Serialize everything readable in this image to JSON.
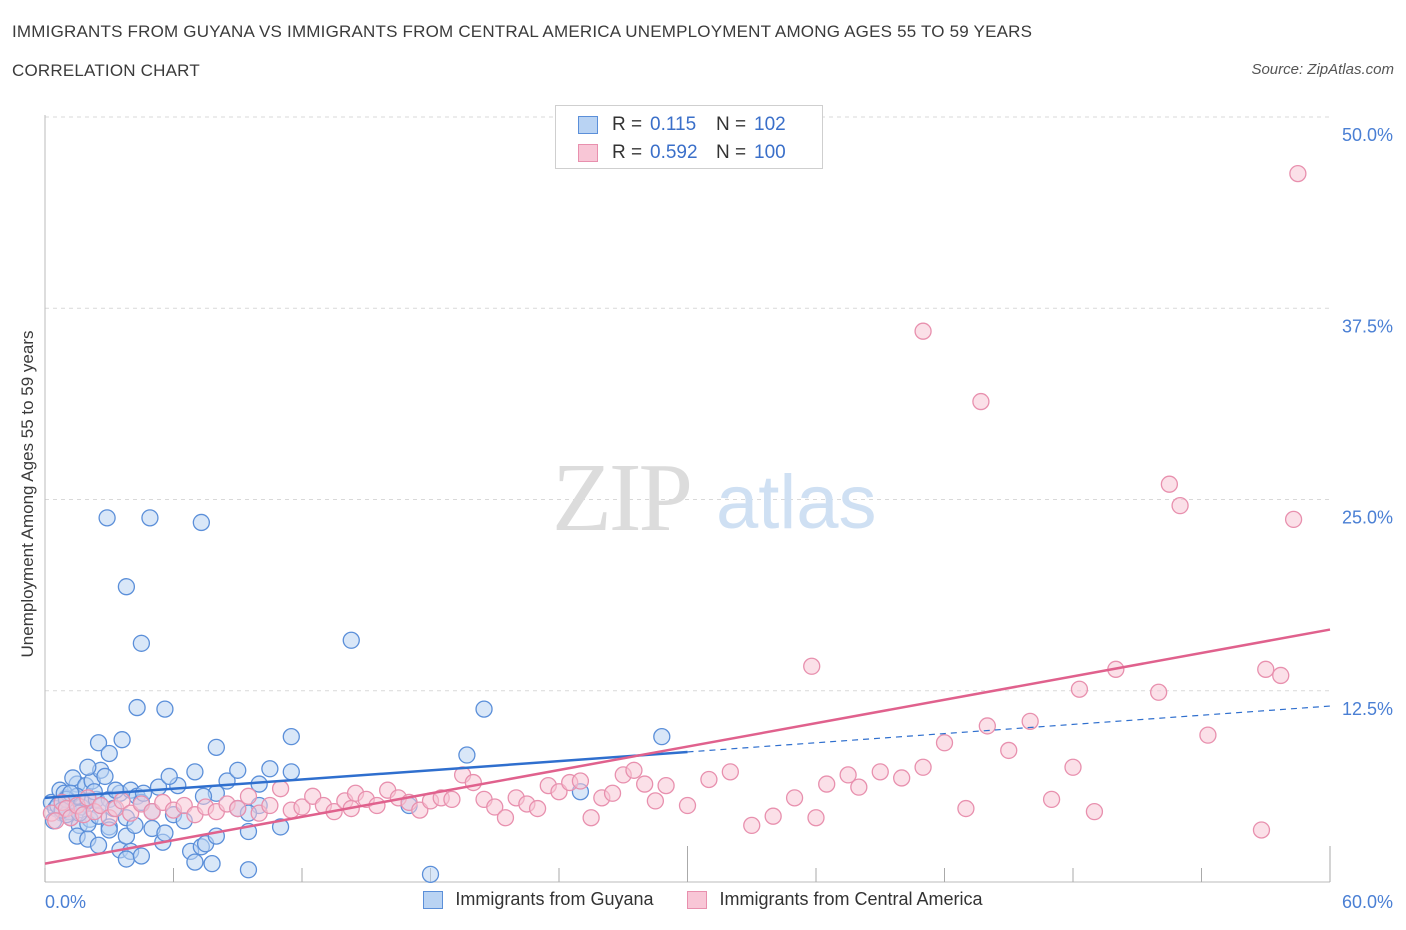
{
  "header": {
    "title": "IMMIGRANTS FROM GUYANA VS IMMIGRANTS FROM CENTRAL AMERICA UNEMPLOYMENT AMONG AGES 55 TO 59 YEARS",
    "subtitle": "CORRELATION CHART",
    "source": "Source: ZipAtlas.com"
  },
  "watermark": {
    "zip": "ZIP",
    "atlas": "atlas"
  },
  "legend": {
    "r_label": "R =",
    "n_label": "N =",
    "rows": [
      {
        "r": "0.115",
        "n": "102"
      },
      {
        "r": "0.592",
        "n": "100"
      }
    ]
  },
  "colors": {
    "guyana_fill": "#b9d3f3",
    "guyana_stroke": "#5b8fd9",
    "guyana_line": "#2f6fce",
    "central_fill": "#f8c6d6",
    "central_stroke": "#e890ae",
    "central_line": "#e0618d",
    "tick_text": "#4a7fd4",
    "grid": "#d9d9d9"
  },
  "chart_data": {
    "type": "scatter",
    "title": "IMMIGRANTS FROM GUYANA VS IMMIGRANTS FROM CENTRAL AMERICA UNEMPLOYMENT AMONG AGES 55 TO 59 YEARS",
    "ylabel": "Unemployment Among Ages 55 to 59 years",
    "xlim": [
      0,
      60
    ],
    "ylim": [
      0,
      50
    ],
    "x_tick_labels": [
      "0.0%",
      "60.0%"
    ],
    "y_ticks": [
      12.5,
      25.0,
      37.5,
      50.0
    ],
    "y_tick_labels": [
      "12.5%",
      "25.0%",
      "37.5%",
      "50.0%"
    ],
    "grid": "horizontal dashed",
    "series": [
      {
        "name": "Immigrants from Guyana",
        "r": 0.115,
        "n": 102,
        "trend": {
          "x0": 0,
          "y0": 5.5,
          "x1": 60,
          "y1": 11.5,
          "solid_until": 30
        },
        "points": [
          [
            0.3,
            5.2
          ],
          [
            0.5,
            4.8
          ],
          [
            0.7,
            6.0
          ],
          [
            0.8,
            4.5
          ],
          [
            1.0,
            5.5
          ],
          [
            1.2,
            4.2
          ],
          [
            1.4,
            5.0
          ],
          [
            1.5,
            6.4
          ],
          [
            1.6,
            3.7
          ],
          [
            1.8,
            5.1
          ],
          [
            0.4,
            4.0
          ],
          [
            0.9,
            5.8
          ],
          [
            1.1,
            4.6
          ],
          [
            1.3,
            6.8
          ],
          [
            1.7,
            4.9
          ],
          [
            1.9,
            6.3
          ],
          [
            2.0,
            5.3
          ],
          [
            2.1,
            4.1
          ],
          [
            2.2,
            6.6
          ],
          [
            2.4,
            5.4
          ],
          [
            0.6,
            5.0
          ],
          [
            1.0,
            4.4
          ],
          [
            1.5,
            5.6
          ],
          [
            2.0,
            3.8
          ],
          [
            2.3,
            5.9
          ],
          [
            2.5,
            4.3
          ],
          [
            2.6,
            7.3
          ],
          [
            2.8,
            6.9
          ],
          [
            3.0,
            5.4
          ],
          [
            3.2,
            4.8
          ],
          [
            2.0,
            7.5
          ],
          [
            2.5,
            9.1
          ],
          [
            3.0,
            8.4
          ],
          [
            3.5,
            5.8
          ],
          [
            3.8,
            4.2
          ],
          [
            4.0,
            6.0
          ],
          [
            4.3,
            5.6
          ],
          [
            4.5,
            5.2
          ],
          [
            5.0,
            4.6
          ],
          [
            5.3,
            6.2
          ],
          [
            1.5,
            3.0
          ],
          [
            2.0,
            2.8
          ],
          [
            2.5,
            2.4
          ],
          [
            3.0,
            3.6
          ],
          [
            3.5,
            2.1
          ],
          [
            4.0,
            2.0
          ],
          [
            3.8,
            1.5
          ],
          [
            4.5,
            1.7
          ],
          [
            5.0,
            3.5
          ],
          [
            5.5,
            2.6
          ],
          [
            3.0,
            3.4
          ],
          [
            3.8,
            3.0
          ],
          [
            4.2,
            3.7
          ],
          [
            5.6,
            3.2
          ],
          [
            6.0,
            4.4
          ],
          [
            6.5,
            4.0
          ],
          [
            6.8,
            2.0
          ],
          [
            7.0,
            1.3
          ],
          [
            7.3,
            2.3
          ],
          [
            7.5,
            2.5
          ],
          [
            7.8,
            1.2
          ],
          [
            8.0,
            3.0
          ],
          [
            8.5,
            6.6
          ],
          [
            9.0,
            4.8
          ],
          [
            10.0,
            5.0
          ],
          [
            7.0,
            7.2
          ],
          [
            6.2,
            6.3
          ],
          [
            5.8,
            6.9
          ],
          [
            4.6,
            5.8
          ],
          [
            8.0,
            5.8
          ],
          [
            9.5,
            3.3
          ],
          [
            10.5,
            7.4
          ],
          [
            11.0,
            3.6
          ],
          [
            8.0,
            8.8
          ],
          [
            10.0,
            6.4
          ],
          [
            11.5,
            7.2
          ],
          [
            11.5,
            9.5
          ],
          [
            9.0,
            7.3
          ],
          [
            9.5,
            4.5
          ],
          [
            7.4,
            5.6
          ],
          [
            4.3,
            11.4
          ],
          [
            5.6,
            11.3
          ],
          [
            3.6,
            9.3
          ],
          [
            4.5,
            15.6
          ],
          [
            2.9,
            23.8
          ],
          [
            4.9,
            23.8
          ],
          [
            7.3,
            23.5
          ],
          [
            3.8,
            19.3
          ],
          [
            14.3,
            15.8
          ],
          [
            19.7,
            8.3
          ],
          [
            17.0,
            5.0
          ],
          [
            25.0,
            5.9
          ],
          [
            20.5,
            11.3
          ],
          [
            28.8,
            9.5
          ],
          [
            9.5,
            0.8
          ],
          [
            18.0,
            0.5
          ],
          [
            1.0,
            5.4
          ],
          [
            1.2,
            5.8
          ],
          [
            0.8,
            4.7
          ],
          [
            1.6,
            4.5
          ],
          [
            2.6,
            5.0
          ],
          [
            3.3,
            6.0
          ]
        ]
      },
      {
        "name": "Immigrants from Central America",
        "r": 0.592,
        "n": 100,
        "trend": {
          "x0": 0,
          "y0": 1.2,
          "x1": 60,
          "y1": 16.5
        },
        "points": [
          [
            0.3,
            4.5
          ],
          [
            0.5,
            4.0
          ],
          [
            0.8,
            5.2
          ],
          [
            1.0,
            4.8
          ],
          [
            1.2,
            4.2
          ],
          [
            1.5,
            5.0
          ],
          [
            1.8,
            4.4
          ],
          [
            2.0,
            5.5
          ],
          [
            2.3,
            4.6
          ],
          [
            2.6,
            5.0
          ],
          [
            3.0,
            4.2
          ],
          [
            3.3,
            4.8
          ],
          [
            3.6,
            5.3
          ],
          [
            4.0,
            4.5
          ],
          [
            4.5,
            5.1
          ],
          [
            5.0,
            4.6
          ],
          [
            5.5,
            5.2
          ],
          [
            6.0,
            4.7
          ],
          [
            6.5,
            5.0
          ],
          [
            7.0,
            4.4
          ],
          [
            7.5,
            4.9
          ],
          [
            8.0,
            4.6
          ],
          [
            8.5,
            5.1
          ],
          [
            9.0,
            4.8
          ],
          [
            9.5,
            5.6
          ],
          [
            10.0,
            4.5
          ],
          [
            10.5,
            5.0
          ],
          [
            11.0,
            6.1
          ],
          [
            11.5,
            4.7
          ],
          [
            12.0,
            4.9
          ],
          [
            12.5,
            5.6
          ],
          [
            13.0,
            5.0
          ],
          [
            13.5,
            4.6
          ],
          [
            14.0,
            5.3
          ],
          [
            14.5,
            5.8
          ],
          [
            15.0,
            5.4
          ],
          [
            15.5,
            5.0
          ],
          [
            16.0,
            6.0
          ],
          [
            16.5,
            5.5
          ],
          [
            17.0,
            5.2
          ],
          [
            17.5,
            4.7
          ],
          [
            18.0,
            5.3
          ],
          [
            18.5,
            5.5
          ],
          [
            19.0,
            5.4
          ],
          [
            19.5,
            7.0
          ],
          [
            20.0,
            6.5
          ],
          [
            20.5,
            5.4
          ],
          [
            21.0,
            4.9
          ],
          [
            21.5,
            4.2
          ],
          [
            22.0,
            5.5
          ],
          [
            22.5,
            5.1
          ],
          [
            23.0,
            4.8
          ],
          [
            23.5,
            6.3
          ],
          [
            24.0,
            5.9
          ],
          [
            24.5,
            6.5
          ],
          [
            25.0,
            6.6
          ],
          [
            25.5,
            4.2
          ],
          [
            26.0,
            5.5
          ],
          [
            26.5,
            5.8
          ],
          [
            27.0,
            7.0
          ],
          [
            27.5,
            7.3
          ],
          [
            28.0,
            6.4
          ],
          [
            28.5,
            5.3
          ],
          [
            29.0,
            6.3
          ],
          [
            30.0,
            5.0
          ],
          [
            31.0,
            6.7
          ],
          [
            32.0,
            7.2
          ],
          [
            33.0,
            3.7
          ],
          [
            34.0,
            4.3
          ],
          [
            35.0,
            5.5
          ],
          [
            36.0,
            4.2
          ],
          [
            36.5,
            6.4
          ],
          [
            37.5,
            7.0
          ],
          [
            38.0,
            6.2
          ],
          [
            39.0,
            7.2
          ],
          [
            40.0,
            6.8
          ],
          [
            41.0,
            7.5
          ],
          [
            42.0,
            9.1
          ],
          [
            43.0,
            4.8
          ],
          [
            44.0,
            10.2
          ],
          [
            45.0,
            8.6
          ],
          [
            46.0,
            10.5
          ],
          [
            47.0,
            5.4
          ],
          [
            48.0,
            7.5
          ],
          [
            49.0,
            4.6
          ],
          [
            52.0,
            12.4
          ],
          [
            35.8,
            14.1
          ],
          [
            43.7,
            31.4
          ],
          [
            48.3,
            12.6
          ],
          [
            50.0,
            13.9
          ],
          [
            52.5,
            26.0
          ],
          [
            54.3,
            9.6
          ],
          [
            56.8,
            3.4
          ],
          [
            57.0,
            13.9
          ],
          [
            57.7,
            13.5
          ],
          [
            58.3,
            23.7
          ],
          [
            58.5,
            46.3
          ],
          [
            53.0,
            24.6
          ],
          [
            41.0,
            36.0
          ],
          [
            14.3,
            4.8
          ]
        ]
      }
    ]
  },
  "bottom_legend": [
    "Immigrants from Guyana",
    "Immigrants from Central America"
  ]
}
